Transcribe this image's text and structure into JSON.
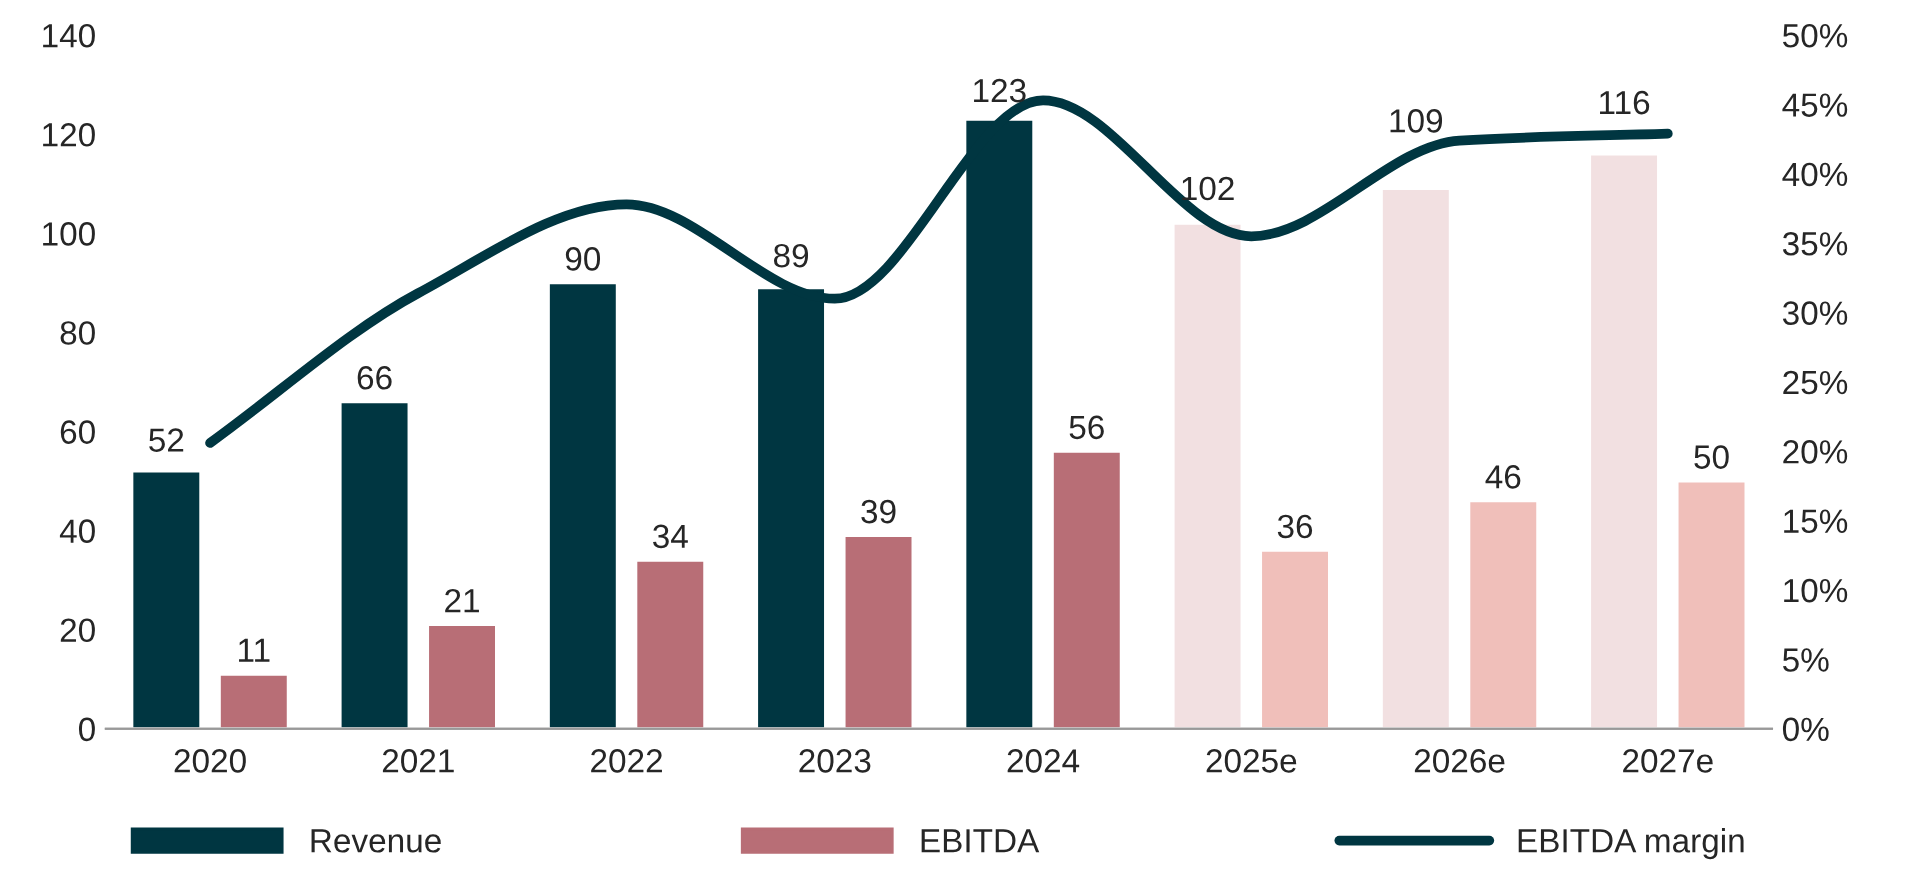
{
  "chart_data": {
    "type": "bar",
    "categories": [
      "2020",
      "2021",
      "2022",
      "2023",
      "2024",
      "2025e",
      "2026e",
      "2027e"
    ],
    "series": [
      {
        "name": "Revenue",
        "colors": [
          "#003641",
          "#003641",
          "#003641",
          "#003641",
          "#003641",
          "#f2e0e1",
          "#f2e0e1",
          "#f2e0e1"
        ],
        "values": [
          52,
          66,
          90,
          89,
          123,
          102,
          109,
          116
        ],
        "value_labels": [
          "52",
          "66",
          "90",
          "89",
          "123",
          "102",
          "109",
          "116"
        ]
      },
      {
        "name": "EBITDA",
        "colors": [
          "#b86e76",
          "#b86e76",
          "#b86e76",
          "#b86e76",
          "#b86e76",
          "#f0bfba",
          "#f0bfba",
          "#f0bfba"
        ],
        "values": [
          11,
          21,
          34,
          39,
          56,
          36,
          46,
          50
        ],
        "value_labels": [
          "11",
          "21",
          "34",
          "39",
          "56",
          "36",
          "46",
          "50"
        ]
      },
      {
        "name": "EBITDA margin",
        "type": "line",
        "axis": "y2",
        "color": "#003641",
        "values": [
          20.6,
          31.4,
          37.8,
          31,
          45.3,
          35.5,
          42.4,
          42.9
        ]
      }
    ],
    "ylim": [
      0,
      140
    ],
    "yticks": [
      0,
      20,
      40,
      60,
      80,
      100,
      120,
      140
    ],
    "y2lim": [
      0,
      50
    ],
    "y2ticks": [
      {
        "value": 0,
        "label": "0%"
      },
      {
        "value": 5,
        "label": "5%"
      },
      {
        "value": 10,
        "label": "10%"
      },
      {
        "value": 15,
        "label": "15%"
      },
      {
        "value": 20,
        "label": "20%"
      },
      {
        "value": 25,
        "label": "25%"
      },
      {
        "value": 30,
        "label": "30%"
      },
      {
        "value": 35,
        "label": "35%"
      },
      {
        "value": 40,
        "label": "40%"
      },
      {
        "value": 45,
        "label": "45%"
      },
      {
        "value": 50,
        "label": "50%"
      }
    ],
    "grid": false,
    "legend": "bottom",
    "line_style": "solid",
    "marker": "none"
  }
}
